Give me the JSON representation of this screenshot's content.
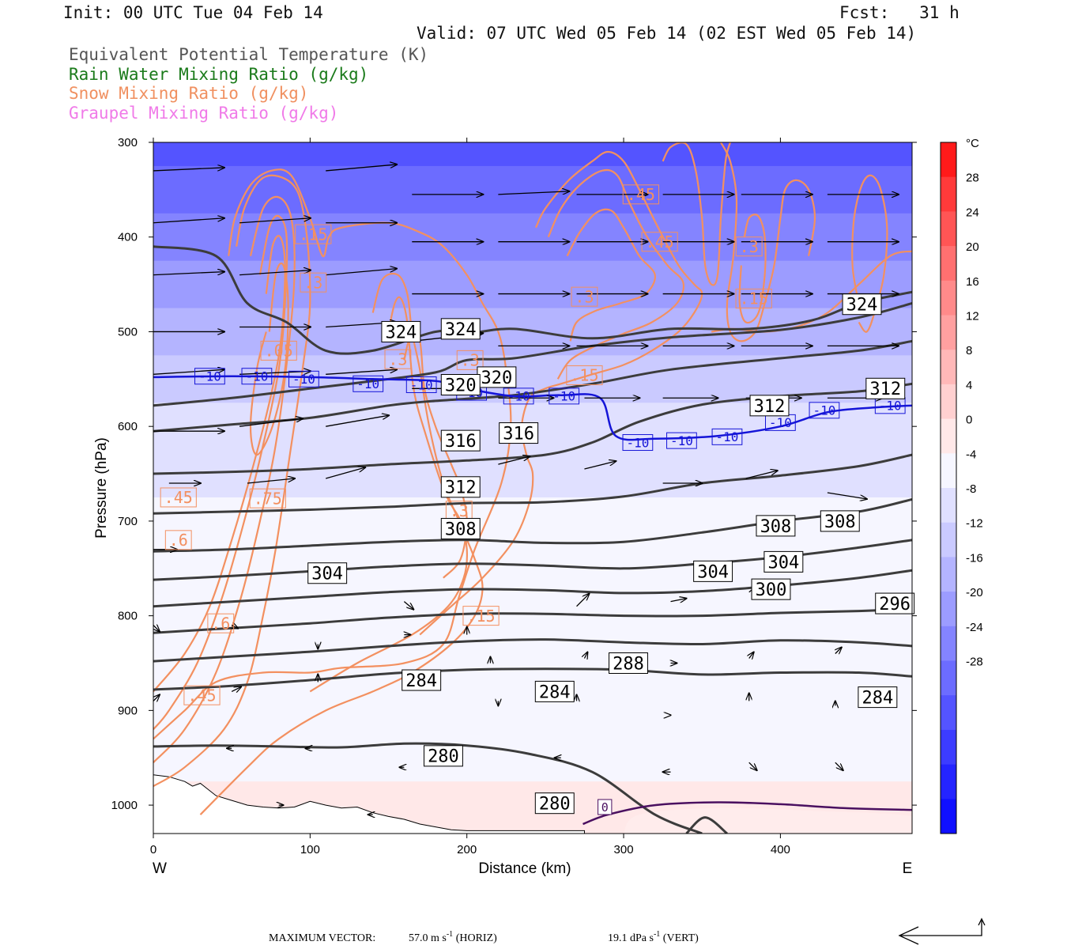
{
  "header": {
    "init": "Init: 00 UTC Tue 04 Feb 14",
    "fcst": "Fcst:   31 h",
    "valid": "Valid: 07 UTC Wed 05 Feb 14 (02 EST Wed 05 Feb 14)"
  },
  "legend": [
    {
      "text": "Equivalent Potential Temperature (K)",
      "color": "#555555"
    },
    {
      "text": "Rain Water Mixing Ratio (g/kg)",
      "color": "#1a7a1a"
    },
    {
      "text": "Snow Mixing Ratio (g/kg)",
      "color": "#f09060"
    },
    {
      "text": "Graupel Mixing Ratio (g/kg)",
      "color": "#f07ae8"
    }
  ],
  "footer": {
    "max_vector_label": "MAXIMUM VECTOR:",
    "horiz_value": "57.0 m s",
    "horiz_exp": "-1",
    "horiz_unit": " (HORIZ)",
    "vert_value": "19.1 dPa s",
    "vert_exp": "-1",
    "vert_unit": " (VERT)"
  },
  "chart_data": {
    "type": "heatmap",
    "title": "",
    "xlabel": "Distance (km)",
    "ylabel": "Pressure (hPa)",
    "xlim": [
      0,
      484
    ],
    "ylim": [
      1030,
      300
    ],
    "x_ticks": [
      0,
      100,
      200,
      300,
      400
    ],
    "y_ticks": [
      300,
      400,
      500,
      600,
      700,
      800,
      900,
      1000
    ],
    "x_edge_labels": {
      "left": "W",
      "right": "E"
    },
    "colorbar": {
      "unit": "°C",
      "ticks": [
        28,
        24,
        20,
        16,
        12,
        8,
        4,
        0,
        -4,
        -8,
        -12,
        -16,
        -20,
        -24,
        -28
      ],
      "colors": [
        "#ff1a1a",
        "#ff3a3a",
        "#ff5555",
        "#ff7070",
        "#ff8a8a",
        "#ffa0a0",
        "#ffb8b8",
        "#ffd0d0",
        "#ffe8e8",
        "#f6f6ff",
        "#e0e0ff",
        "#cacaff",
        "#b4b4ff",
        "#9c9cff",
        "#8484ff",
        "#6c6cff",
        "#5454ff",
        "#3c3cff",
        "#2424ff",
        "#1010ff"
      ]
    },
    "temperature_bands": [
      {
        "p": 300,
        "temp": -32
      },
      {
        "p": 350,
        "temp": -29
      },
      {
        "p": 400,
        "temp": -26
      },
      {
        "p": 450,
        "temp": -22
      },
      {
        "p": 500,
        "temp": -18
      },
      {
        "p": 550,
        "temp": -14
      },
      {
        "p": 600,
        "temp": -11
      },
      {
        "p": 650,
        "temp": -9
      },
      {
        "p": 700,
        "temp": -7
      },
      {
        "p": 750,
        "temp": -6
      },
      {
        "p": 800,
        "temp": -5
      },
      {
        "p": 850,
        "temp": -4
      },
      {
        "p": 900,
        "temp": -4
      },
      {
        "p": 950,
        "temp": -4
      },
      {
        "p": 1000,
        "temp": -3
      }
    ],
    "theta_e_contours": [
      {
        "level": 280,
        "points": [
          [
            0,
            938
          ],
          [
            40,
            937
          ],
          [
            80,
            938
          ],
          [
            120,
            939
          ],
          [
            160,
            935
          ],
          [
            200,
            937
          ],
          [
            240,
            946
          ],
          [
            280,
            965
          ],
          [
            320,
            1010
          ],
          [
            350,
            1030
          ]
        ]
      },
      {
        "level": 284,
        "points": [
          [
            0,
            878
          ],
          [
            50,
            874
          ],
          [
            100,
            868
          ],
          [
            150,
            861
          ],
          [
            200,
            857
          ],
          [
            250,
            856
          ],
          [
            300,
            857
          ],
          [
            350,
            862
          ],
          [
            400,
            860
          ],
          [
            450,
            860
          ],
          [
            484,
            864
          ]
        ]
      },
      {
        "level": 288,
        "points": [
          [
            0,
            848
          ],
          [
            50,
            843
          ],
          [
            100,
            838
          ],
          [
            150,
            832
          ],
          [
            200,
            827
          ],
          [
            250,
            825
          ],
          [
            300,
            828
          ],
          [
            350,
            830
          ],
          [
            400,
            826
          ],
          [
            450,
            828
          ],
          [
            484,
            832
          ]
        ]
      },
      {
        "level": 292,
        "points": [
          [
            0,
            818
          ],
          [
            50,
            813
          ],
          [
            100,
            808
          ],
          [
            150,
            802
          ],
          [
            200,
            798
          ],
          [
            250,
            798
          ],
          [
            300,
            800
          ],
          [
            350,
            800
          ],
          [
            400,
            797
          ],
          [
            450,
            795
          ],
          [
            484,
            793
          ]
        ]
      },
      {
        "level": 296,
        "points": [
          [
            0,
            790
          ],
          [
            50,
            785
          ],
          [
            100,
            780
          ],
          [
            150,
            775
          ],
          [
            200,
            772
          ],
          [
            250,
            773
          ],
          [
            300,
            776
          ],
          [
            350,
            774
          ],
          [
            400,
            768
          ],
          [
            450,
            760
          ],
          [
            484,
            752
          ]
        ]
      },
      {
        "level": 300,
        "points": [
          [
            0,
            762
          ],
          [
            50,
            758
          ],
          [
            100,
            753
          ],
          [
            150,
            748
          ],
          [
            200,
            745
          ],
          [
            250,
            747
          ],
          [
            300,
            750
          ],
          [
            350,
            745
          ],
          [
            400,
            738
          ],
          [
            450,
            728
          ],
          [
            484,
            720
          ]
        ]
      },
      {
        "level": 304,
        "points": [
          [
            0,
            732
          ],
          [
            50,
            730
          ],
          [
            100,
            726
          ],
          [
            150,
            722
          ],
          [
            200,
            720
          ],
          [
            250,
            723
          ],
          [
            300,
            722
          ],
          [
            350,
            712
          ],
          [
            400,
            700
          ],
          [
            450,
            690
          ],
          [
            484,
            677
          ]
        ]
      },
      {
        "level": 308,
        "points": [
          [
            0,
            692
          ],
          [
            50,
            690
          ],
          [
            100,
            688
          ],
          [
            150,
            685
          ],
          [
            200,
            681
          ],
          [
            250,
            680
          ],
          [
            300,
            674
          ],
          [
            350,
            660
          ],
          [
            400,
            652
          ],
          [
            450,
            642
          ],
          [
            484,
            630
          ]
        ]
      },
      {
        "level": 312,
        "points": [
          [
            0,
            650
          ],
          [
            50,
            648
          ],
          [
            100,
            645
          ],
          [
            150,
            640
          ],
          [
            200,
            636
          ],
          [
            250,
            630
          ],
          [
            280,
            617
          ],
          [
            310,
            595
          ],
          [
            350,
            577
          ],
          [
            400,
            568
          ],
          [
            450,
            563
          ],
          [
            484,
            555
          ]
        ]
      },
      {
        "level": 316,
        "points": [
          [
            0,
            605
          ],
          [
            50,
            598
          ],
          [
            100,
            591
          ],
          [
            150,
            578
          ],
          [
            180,
            573
          ],
          [
            230,
            567
          ],
          [
            280,
            555
          ],
          [
            330,
            540
          ],
          [
            400,
            528
          ],
          [
            450,
            520
          ],
          [
            484,
            510
          ]
        ]
      },
      {
        "level": 320,
        "points": [
          [
            0,
            578
          ],
          [
            50,
            570
          ],
          [
            100,
            560
          ],
          [
            140,
            552
          ],
          [
            180,
            543
          ],
          [
            200,
            530
          ],
          [
            230,
            528
          ],
          [
            280,
            515
          ],
          [
            330,
            506
          ],
          [
            400,
            498
          ],
          [
            450,
            485
          ],
          [
            484,
            470
          ]
        ]
      },
      {
        "level": 324,
        "points": [
          [
            0,
            410
          ],
          [
            40,
            420
          ],
          [
            60,
            470
          ],
          [
            85,
            490
          ],
          [
            110,
            520
          ],
          [
            140,
            520
          ],
          [
            180,
            500
          ],
          [
            200,
            502
          ],
          [
            230,
            497
          ],
          [
            280,
            507
          ],
          [
            330,
            497
          ],
          [
            380,
            497
          ],
          [
            420,
            488
          ],
          [
            450,
            470
          ],
          [
            484,
            458
          ]
        ]
      }
    ],
    "theta_e_labels": [
      {
        "text": "324",
        "x": 158,
        "p": 500
      },
      {
        "text": "324",
        "x": 196,
        "p": 497
      },
      {
        "text": "324",
        "x": 452,
        "p": 471
      },
      {
        "text": "320",
        "x": 219,
        "p": 548
      },
      {
        "text": "320",
        "x": 196,
        "p": 556
      },
      {
        "text": "316",
        "x": 196,
        "p": 615
      },
      {
        "text": "316",
        "x": 233,
        "p": 607
      },
      {
        "text": "312",
        "x": 196,
        "p": 664
      },
      {
        "text": "312",
        "x": 393,
        "p": 578
      },
      {
        "text": "312",
        "x": 467,
        "p": 560
      },
      {
        "text": "308",
        "x": 196,
        "p": 708
      },
      {
        "text": "308",
        "x": 397,
        "p": 705
      },
      {
        "text": "308",
        "x": 438,
        "p": 700
      },
      {
        "text": "304",
        "x": 111,
        "p": 755
      },
      {
        "text": "304",
        "x": 357,
        "p": 753
      },
      {
        "text": "304",
        "x": 402,
        "p": 743
      },
      {
        "text": "300",
        "x": 394,
        "p": 772
      },
      {
        "text": "296",
        "x": 473,
        "p": 787
      },
      {
        "text": "288",
        "x": 303,
        "p": 850
      },
      {
        "text": "284",
        "x": 171,
        "p": 868
      },
      {
        "text": "284",
        "x": 256,
        "p": 880
      },
      {
        "text": "284",
        "x": 462,
        "p": 886
      },
      {
        "text": "280",
        "x": 185,
        "p": 948
      },
      {
        "text": "280",
        "x": 256,
        "p": 998
      }
    ],
    "isotherm_minus10": {
      "level": -10,
      "points": [
        [
          0,
          548
        ],
        [
          50,
          547
        ],
        [
          100,
          548
        ],
        [
          140,
          550
        ],
        [
          180,
          552
        ],
        [
          200,
          560
        ],
        [
          230,
          568
        ],
        [
          260,
          567
        ],
        [
          285,
          570
        ],
        [
          295,
          610
        ],
        [
          320,
          613
        ],
        [
          360,
          610
        ],
        [
          400,
          600
        ],
        [
          430,
          585
        ],
        [
          460,
          580
        ],
        [
          484,
          578
        ]
      ],
      "labels": [
        [
          36,
          547
        ],
        [
          66,
          547
        ],
        [
          96,
          550
        ],
        [
          137,
          555
        ],
        [
          171,
          556
        ],
        [
          203,
          564
        ],
        [
          233,
          568
        ],
        [
          262,
          568
        ],
        [
          309,
          617
        ],
        [
          337,
          615
        ],
        [
          366,
          611
        ],
        [
          400,
          596
        ],
        [
          428,
          583
        ],
        [
          470,
          578
        ]
      ]
    },
    "isotherm_zero": {
      "level": 0,
      "label": "0",
      "points": [
        [
          274,
          1020
        ],
        [
          290,
          1010
        ],
        [
          320,
          1000
        ],
        [
          360,
          997
        ],
        [
          400,
          999
        ],
        [
          440,
          1003
        ],
        [
          484,
          1005
        ]
      ]
    },
    "snow_mixing_ratio_labels": [
      {
        "text": ".15",
        "x": 102,
        "p": 397
      },
      {
        "text": ".3",
        "x": 102,
        "p": 448
      },
      {
        "text": ".05",
        "x": 80,
        "p": 520
      },
      {
        "text": ".45",
        "x": 16,
        "p": 675
      },
      {
        "text": ".75",
        "x": 73,
        "p": 676
      },
      {
        "text": ".6",
        "x": 16,
        "p": 720
      },
      {
        "text": ".6",
        "x": 43,
        "p": 808
      },
      {
        "text": ".45",
        "x": 31,
        "p": 884
      },
      {
        "text": ".3",
        "x": 156,
        "p": 529
      },
      {
        "text": ".3",
        "x": 202,
        "p": 530
      },
      {
        "text": ".3",
        "x": 195,
        "p": 689
      },
      {
        "text": ".15",
        "x": 209,
        "p": 800
      },
      {
        "text": ".15",
        "x": 275,
        "p": 546
      },
      {
        "text": ".3",
        "x": 275,
        "p": 463
      },
      {
        "text": ".45",
        "x": 311,
        "p": 355
      },
      {
        "text": ".45",
        "x": 323,
        "p": 405
      },
      {
        "text": ".3",
        "x": 380,
        "p": 410
      },
      {
        "text": ".15",
        "x": 383,
        "p": 465
      }
    ],
    "wind_vectors_note": "circulation vectors (horizontal m/s, vertical dPa/s)",
    "max_vector": {
      "horiz_ms": 57.0,
      "vert_dpas": 19.1
    }
  }
}
